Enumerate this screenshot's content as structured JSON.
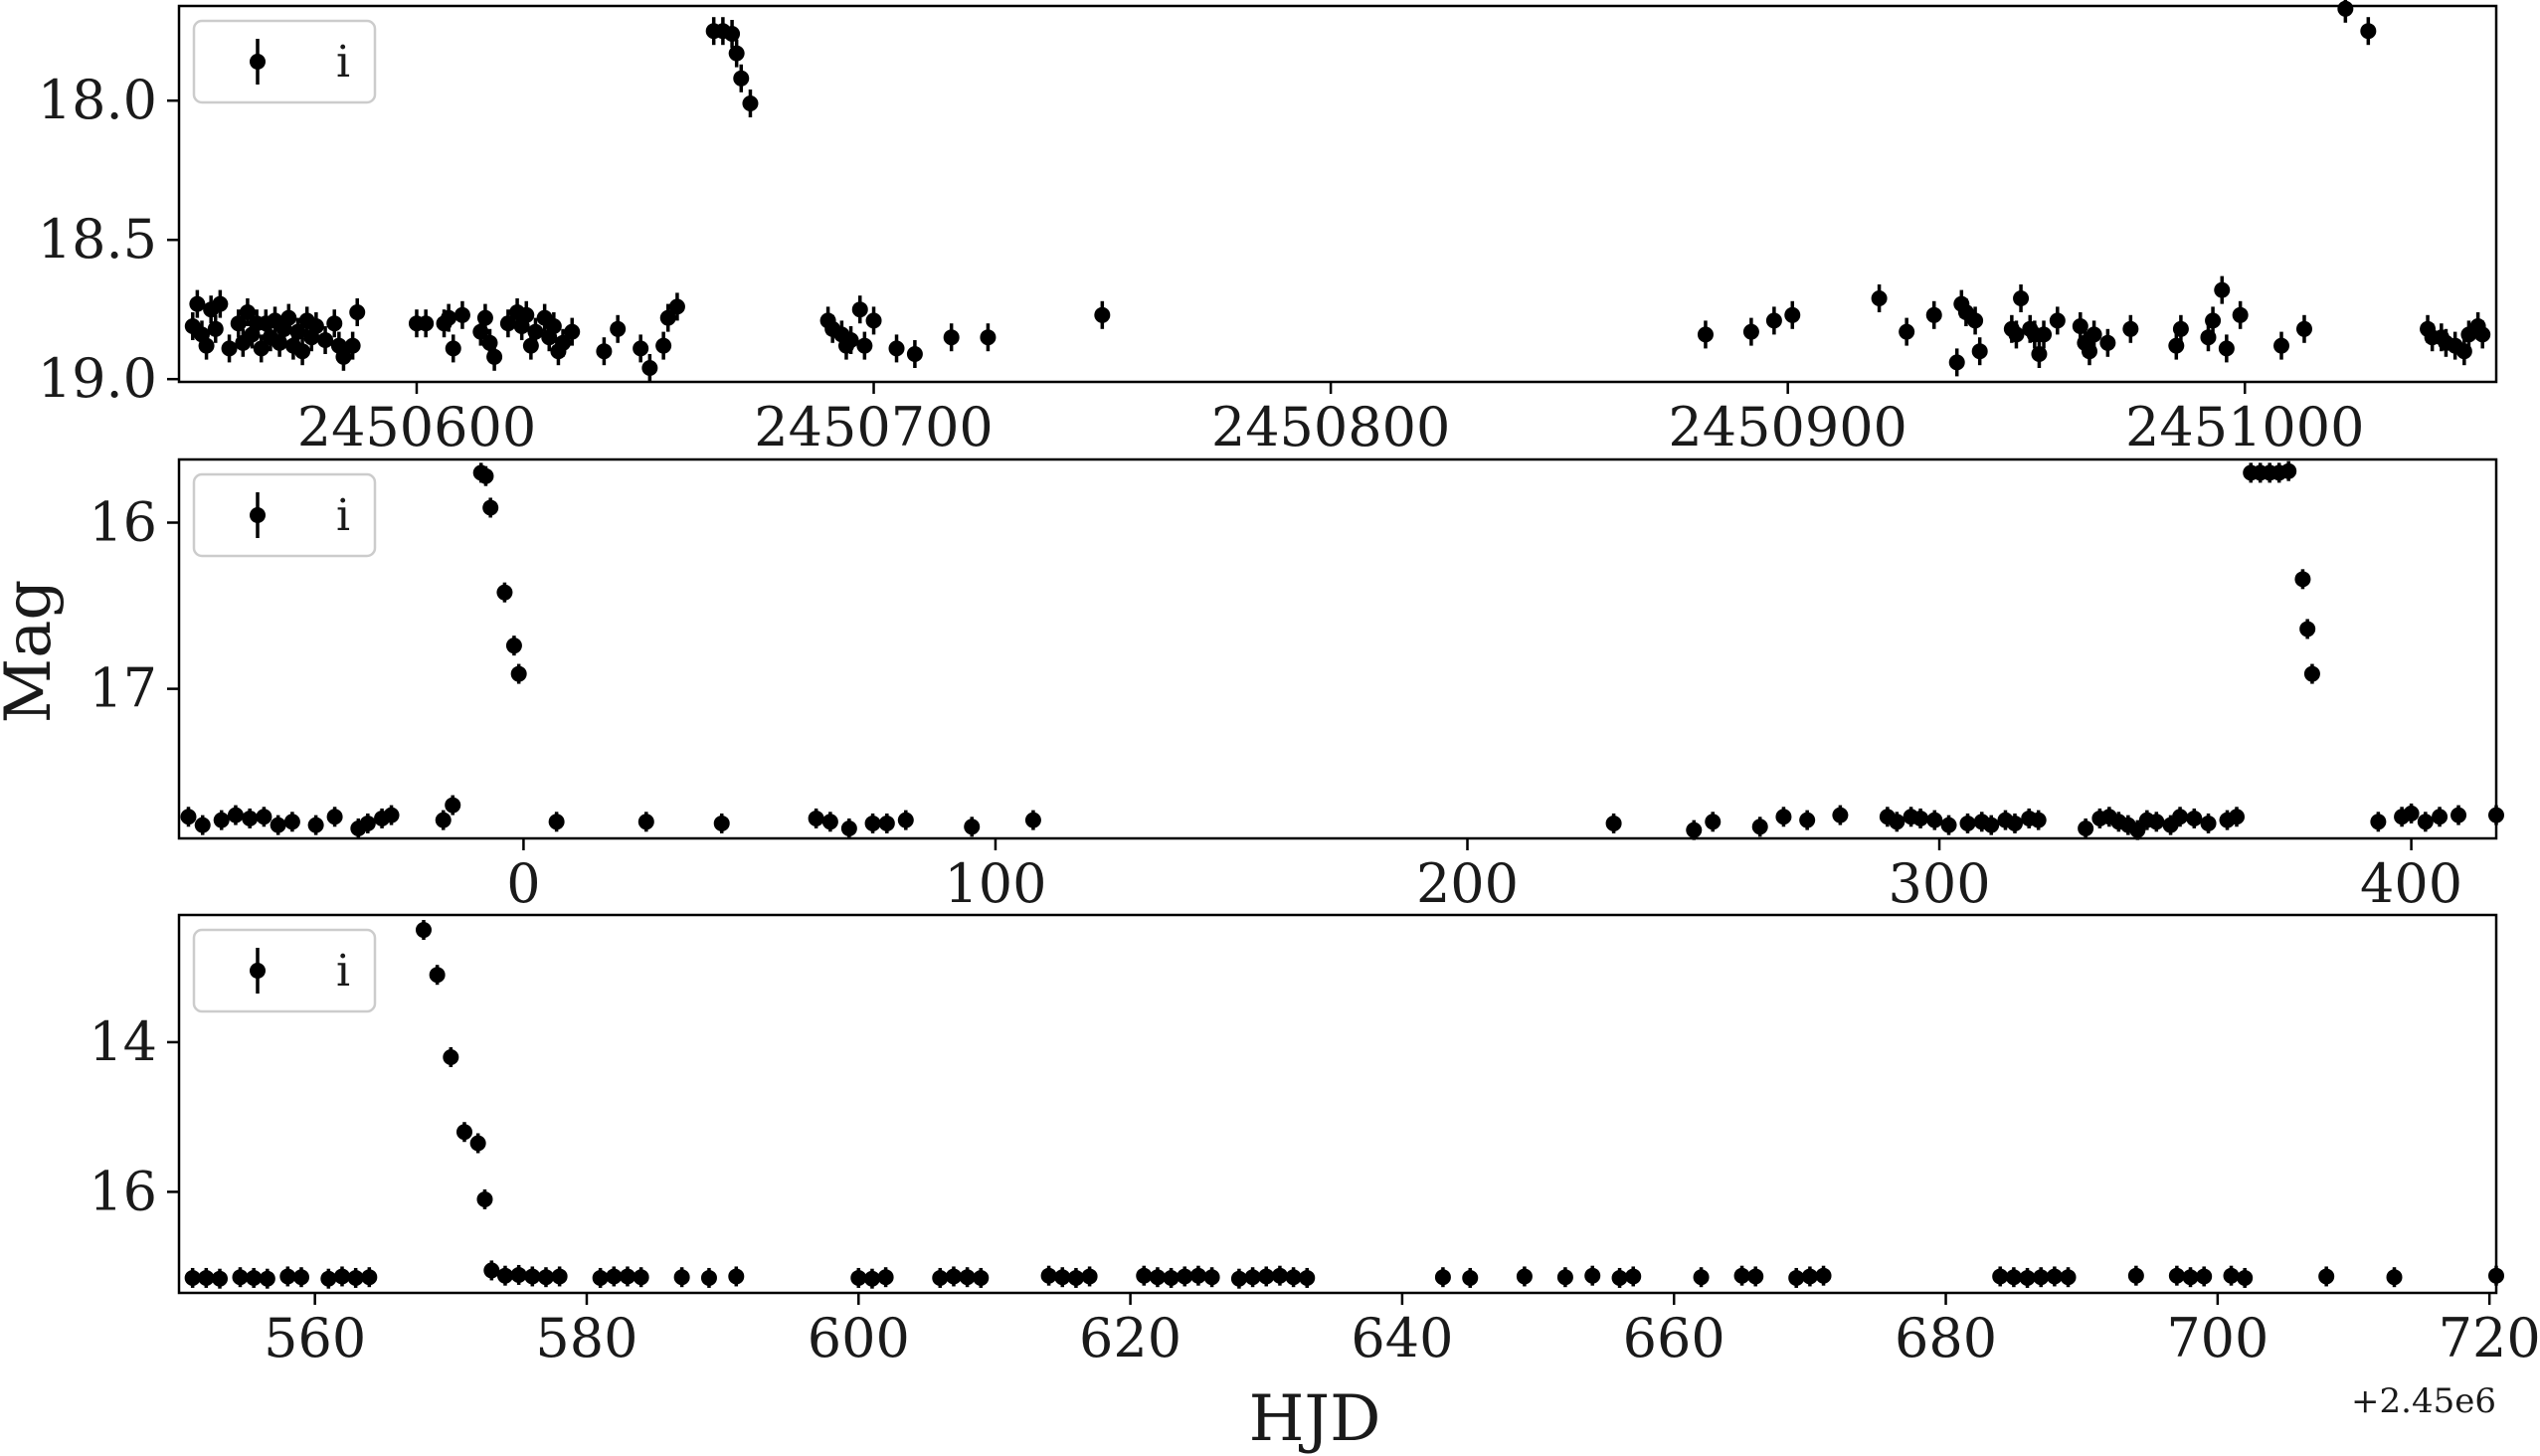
{
  "chart_data": [
    {
      "type": "scatter",
      "legend": {
        "entries": [
          "i"
        ],
        "placement": "upper-left"
      },
      "xlim": [
        2450548,
        2451055
      ],
      "ylim": [
        19.01,
        17.66
      ],
      "y_inverted": true,
      "xticks": [
        2450600,
        2450700,
        2450800,
        2450900,
        2451000
      ],
      "xtick_labels": [
        "2450600",
        "2450700",
        "2450800",
        "2450900",
        "2451000"
      ],
      "yticks": [
        18.0,
        18.5,
        19.0
      ],
      "ytick_labels": [
        "18.0",
        "18.5",
        "19.0"
      ],
      "series": [
        {
          "name": "i",
          "error": 0.05,
          "x": [
            2450551,
            2450552,
            2450553,
            2450554,
            2450555,
            2450556,
            2450557,
            2450559,
            2450561,
            2450562,
            2450563,
            2450564,
            2450565,
            2450566,
            2450567,
            2450568,
            2450569,
            2450570,
            2450571,
            2450572,
            2450573,
            2450574,
            2450575,
            2450576,
            2450577,
            2450578,
            2450580,
            2450582,
            2450583,
            2450584,
            2450586,
            2450587,
            2450600,
            2450602,
            2450606,
            2450607,
            2450608,
            2450610,
            2450614,
            2450615,
            2450616,
            2450617,
            2450620,
            2450622,
            2450623,
            2450624,
            2450625,
            2450626,
            2450628,
            2450629,
            2450630,
            2450631,
            2450632,
            2450634,
            2450641,
            2450644,
            2450649,
            2450651,
            2450654,
            2450655,
            2450657,
            2450665,
            2450667,
            2450669,
            2450670,
            2450671,
            2450673,
            2450690,
            2450691,
            2450693,
            2450694,
            2450695,
            2450697,
            2450698,
            2450700,
            2450705,
            2450709,
            2450717,
            2450725,
            2450750,
            2450882,
            2450892,
            2450897,
            2450901,
            2450920,
            2450926,
            2450932,
            2450937,
            2450938,
            2450939,
            2450941,
            2450942,
            2450949,
            2450950,
            2450951,
            2450953,
            2450954,
            2450955,
            2450956,
            2450959,
            2450964,
            2450965,
            2450966,
            2450967,
            2450970,
            2450975,
            2450985,
            2450986,
            2450992,
            2450993,
            2450995,
            2450996,
            2450999,
            2451008,
            2451013,
            2451022,
            2451027,
            2451040,
            2451041,
            2451043,
            2451044,
            2451046,
            2451048,
            2451049,
            2451051,
            2451052
          ],
          "y": [
            18.81,
            18.73,
            18.84,
            18.88,
            18.75,
            18.82,
            18.73,
            18.89,
            18.8,
            18.87,
            18.76,
            18.84,
            18.8,
            18.89,
            18.8,
            18.85,
            18.79,
            18.87,
            18.82,
            18.78,
            18.88,
            18.83,
            18.9,
            18.79,
            18.85,
            18.81,
            18.86,
            18.8,
            18.88,
            18.92,
            18.88,
            18.76,
            18.8,
            18.8,
            18.8,
            18.78,
            18.89,
            18.77,
            18.83,
            18.78,
            18.87,
            18.92,
            18.8,
            18.76,
            18.81,
            18.77,
            18.88,
            18.83,
            18.78,
            18.85,
            18.81,
            18.9,
            18.87,
            18.83,
            18.9,
            18.82,
            18.89,
            18.96,
            18.88,
            18.78,
            18.74,
            17.75,
            17.75,
            17.76,
            17.83,
            17.92,
            18.01,
            18.79,
            18.82,
            18.84,
            18.88,
            18.86,
            18.75,
            18.88,
            18.79,
            18.89,
            18.91,
            18.85,
            18.85,
            18.77,
            18.84,
            18.83,
            18.79,
            18.77,
            18.71,
            18.83,
            18.77,
            18.94,
            18.73,
            18.76,
            18.79,
            18.9,
            18.82,
            18.84,
            18.71,
            18.82,
            18.84,
            18.91,
            18.84,
            18.79,
            18.81,
            18.87,
            18.9,
            18.84,
            18.87,
            18.82,
            18.88,
            18.82,
            18.85,
            18.79,
            18.68,
            18.89,
            18.77,
            18.88,
            18.82,
            17.67,
            17.75,
            18.82,
            18.85,
            18.85,
            18.87,
            18.88,
            18.9,
            18.84,
            18.81,
            18.84
          ]
        }
      ],
      "title": "",
      "xlabel": "",
      "ylabel": ""
    },
    {
      "type": "scatter",
      "legend": {
        "entries": [
          "i"
        ],
        "placement": "upper-left"
      },
      "xlim": [
        -73,
        418
      ],
      "ylim": [
        17.9,
        15.62
      ],
      "y_inverted": true,
      "xticks": [
        0,
        100,
        200,
        300,
        400
      ],
      "xtick_labels": [
        "0",
        "100",
        "200",
        "300",
        "400"
      ],
      "yticks": [
        16,
        17
      ],
      "ytick_labels": [
        "16",
        "17"
      ],
      "series": [
        {
          "name": "i",
          "error": 0.02,
          "x": [
            -71,
            -68,
            -64,
            -61,
            -58,
            -55,
            -52,
            -49,
            -44,
            -40,
            -35,
            -33,
            -30,
            -28,
            -17,
            -15,
            -9,
            -8,
            -7,
            -4,
            -2,
            -1,
            7,
            26,
            42,
            62,
            65,
            69,
            74,
            77,
            81,
            95,
            108,
            231,
            248,
            252,
            262,
            267,
            272,
            279,
            289,
            291,
            294,
            296,
            299,
            302,
            306,
            309,
            311,
            314,
            316,
            319,
            321,
            331,
            334,
            336,
            338,
            340,
            342,
            344,
            346,
            349,
            351,
            354,
            357,
            361,
            363,
            366,
            368,
            370,
            372,
            374,
            377,
            378,
            379,
            393,
            398,
            400,
            403,
            406,
            410,
            418
          ],
          "y": [
            17.77,
            17.82,
            17.79,
            17.76,
            17.78,
            17.77,
            17.82,
            17.8,
            17.82,
            17.77,
            17.84,
            17.81,
            17.78,
            17.76,
            17.79,
            17.7,
            15.7,
            15.72,
            15.91,
            16.42,
            16.74,
            16.91,
            17.8,
            17.8,
            17.81,
            17.78,
            17.8,
            17.84,
            17.81,
            17.81,
            17.79,
            17.83,
            17.79,
            17.81,
            17.85,
            17.8,
            17.83,
            17.77,
            17.79,
            17.76,
            17.77,
            17.8,
            17.77,
            17.78,
            17.79,
            17.82,
            17.81,
            17.8,
            17.82,
            17.79,
            17.81,
            17.78,
            17.79,
            17.84,
            17.78,
            17.77,
            17.8,
            17.82,
            17.85,
            17.79,
            17.8,
            17.82,
            17.77,
            17.78,
            17.81,
            17.79,
            17.77,
            15.7,
            15.7,
            15.7,
            15.7,
            15.69,
            16.34,
            16.64,
            16.91,
            17.8,
            17.77,
            17.75,
            17.8,
            17.77,
            17.76,
            17.76
          ]
        }
      ],
      "title": "",
      "xlabel": "",
      "ylabel": "Mag"
    },
    {
      "type": "scatter",
      "legend": {
        "entries": [
          "i"
        ],
        "placement": "upper-left"
      },
      "xlim": [
        2450550,
        2450720.5
      ],
      "ylim": [
        17.35,
        12.3
      ],
      "y_inverted": true,
      "xticks": [
        2450560,
        2450580,
        2450600,
        2450620,
        2450640,
        2450660,
        2450680,
        2450700,
        2450720
      ],
      "xtick_labels": [
        "560",
        "580",
        "600",
        "620",
        "640",
        "660",
        "680",
        "700",
        "720"
      ],
      "yticks": [
        14,
        16
      ],
      "ytick_labels": [
        "14",
        "16"
      ],
      "x_offset_label": "+2.45e6",
      "series": [
        {
          "name": "i",
          "error": 0.04,
          "x": [
            2450551,
            2450552,
            2450553,
            2450554.5,
            2450555.5,
            2450556.5,
            2450558,
            2450559,
            2450561,
            2450562,
            2450563,
            2450564,
            2450568,
            2450569,
            2450570,
            2450571,
            2450572,
            2450572.5,
            2450573,
            2450574,
            2450575,
            2450576,
            2450577,
            2450578,
            2450581,
            2450582,
            2450583,
            2450584,
            2450587,
            2450589,
            2450591,
            2450600,
            2450601,
            2450602,
            2450606,
            2450607,
            2450608,
            2450609,
            2450614,
            2450615,
            2450616,
            2450617,
            2450621,
            2450622,
            2450623,
            2450624,
            2450625,
            2450626,
            2450628,
            2450629,
            2450630,
            2450631,
            2450632,
            2450633,
            2450643,
            2450645,
            2450649,
            2450652,
            2450654,
            2450656,
            2450657,
            2450662,
            2450665,
            2450666,
            2450669,
            2450670,
            2450671,
            2450684,
            2450685,
            2450686,
            2450687,
            2450688,
            2450689,
            2450694,
            2450697,
            2450698,
            2450699,
            2450701,
            2450702,
            2450708,
            2450713,
            2450720.5
          ],
          "y": [
            17.15,
            17.15,
            17.16,
            17.14,
            17.15,
            17.16,
            17.13,
            17.14,
            17.16,
            17.13,
            17.15,
            17.14,
            12.5,
            13.1,
            14.2,
            15.2,
            15.35,
            16.1,
            17.05,
            17.12,
            17.11,
            17.13,
            17.14,
            17.13,
            17.15,
            17.13,
            17.13,
            17.14,
            17.14,
            17.15,
            17.13,
            17.15,
            17.16,
            17.14,
            17.15,
            17.13,
            17.14,
            17.15,
            17.12,
            17.14,
            17.15,
            17.13,
            17.12,
            17.14,
            17.15,
            17.13,
            17.12,
            17.14,
            17.16,
            17.14,
            17.13,
            17.12,
            17.14,
            17.15,
            17.14,
            17.15,
            17.13,
            17.14,
            17.12,
            17.15,
            17.13,
            17.14,
            17.12,
            17.13,
            17.15,
            17.13,
            17.12,
            17.13,
            17.14,
            17.15,
            17.14,
            17.13,
            17.14,
            17.12,
            17.12,
            17.14,
            17.13,
            17.12,
            17.15,
            17.13,
            17.14,
            17.12
          ]
        }
      ],
      "title": "",
      "xlabel": "HJD",
      "ylabel": ""
    }
  ]
}
